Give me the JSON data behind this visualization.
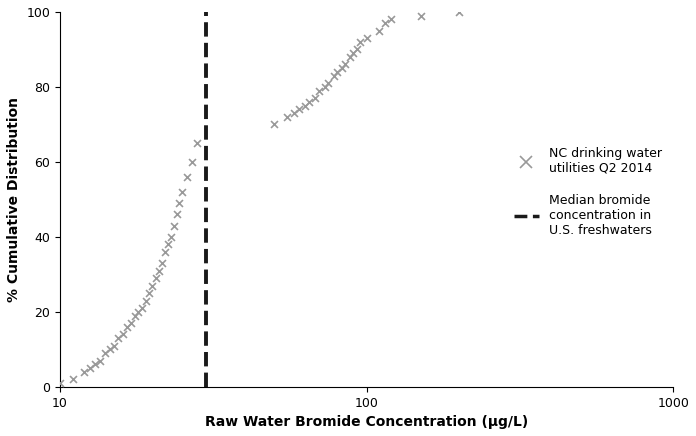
{
  "x_data": [
    10,
    11,
    12,
    12.5,
    13,
    13.5,
    14,
    14.5,
    15,
    15.5,
    16,
    16.5,
    17,
    17.5,
    18,
    18.5,
    19,
    19.5,
    20,
    20.5,
    21,
    21.5,
    22,
    22.5,
    23,
    23.5,
    24,
    24.5,
    25,
    26,
    27,
    28,
    50,
    55,
    58,
    60,
    63,
    65,
    68,
    70,
    73,
    75,
    78,
    80,
    83,
    85,
    88,
    90,
    93,
    95,
    100,
    110,
    115,
    120,
    150,
    200
  ],
  "y_data": [
    1,
    2,
    4,
    5,
    6,
    7,
    9,
    10,
    11,
    13,
    14,
    16,
    17,
    19,
    20,
    21,
    23,
    25,
    27,
    29,
    31,
    33,
    36,
    38,
    40,
    43,
    46,
    49,
    52,
    56,
    60,
    65,
    70,
    72,
    73,
    74,
    75,
    76,
    77,
    79,
    80,
    81,
    83,
    84,
    85,
    86,
    88,
    89,
    90,
    92,
    93,
    95,
    97,
    98,
    99,
    100
  ],
  "vline_x": 30,
  "xlim": [
    10,
    1000
  ],
  "ylim": [
    0,
    100
  ],
  "xlabel": "Raw Water Bromide Concentration (μg/L)",
  "ylabel": "% Cumulative Distribution",
  "scatter_color": "#999999",
  "vline_color": "#1a1a1a",
  "legend_scatter_label": "NC drinking water\nutilities Q2 2014",
  "legend_vline_label": "Median bromide\nconcentration in\nU.S. freshwaters",
  "marker": "x",
  "marker_size": 5,
  "marker_linewidth": 1.2,
  "figsize": [
    6.96,
    4.36
  ],
  "dpi": 100
}
